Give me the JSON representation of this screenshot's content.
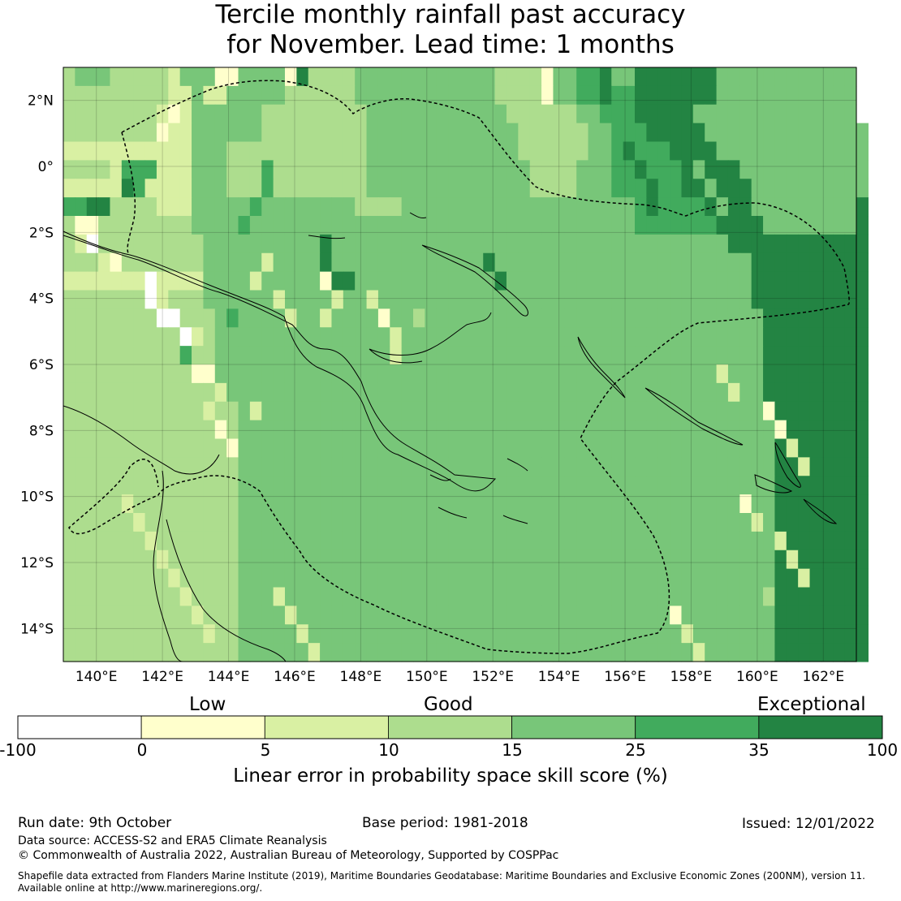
{
  "title": {
    "line1": "Tercile monthly rainfall past accuracy",
    "line2": "for November. Lead time: 1 months"
  },
  "map": {
    "lat_labels": [
      "2°N",
      "0°",
      "2°S",
      "4°S",
      "6°S",
      "8°S",
      "10°S",
      "12°S",
      "14°S"
    ],
    "lon_labels": [
      "140°E",
      "142°E",
      "144°E",
      "146°E",
      "148°E",
      "150°E",
      "152°E",
      "154°E",
      "156°E",
      "158°E",
      "160°E",
      "162°E"
    ],
    "lat_range": [
      3.0,
      -15.0
    ],
    "lon_range": [
      139.0,
      163.0
    ],
    "grid_rows": [
      "DEEEDDDDDCEEEEEEEEEBGDDDDEEEEEEEEEEEEDDDDBEEFFGEEGGGGGGGHHHHHHHHHHHH",
      "DDDDDDDDDCCEEEEEEEEDDDDDDEEEEEEEEEEEEDDDDBEEFFGFFGGGGGGGHHHHHHHHHHHH",
      "DDDDDDDDDCCEEEEEEDDDDDDDDDEEEEEEEEEEEEDDDDDDEEFFFGGGGGHHHHHHHHHHHHHH",
      "DDDDDDDDCCCEEEEEEDDDDDDDDDEEEEEEEEEEEEEDDDDDDEEFFFGGGGGHHHHHHHHHHHHHH",
      "CCCCCCCCCCCEEEDDDDDDDDDDDDEEEEEEEEEEEEEDDDDDDEEFFFFFGGGGHHHHHHHHHHHHH",
      "DDDDCCCCCCCEEEDDDDDDDDDDDDEEEEEEEEEEEEEEDDDDEEEFFFFFFGGGGGHHHHHHHHHHH",
      "CCCCCCCCCCCEEEDDDDDDDDDDDDEEEEEEEEEEEEEEDDDDEEEFFFFFFGGGGGGHHHHHHHHHH",
      "DDDDDDDDCCCEEEEEEEEEEEEEEDDDDEEEEEEEEEEEEEEEEEEEEFFFFFFGGGGHHHHHHHHHG",
      "DDDDDDDDDDDEEEEEEEEEEEEEEEEEEEEEEEEEEEEEEEEEEEEEEFFFFFFFGGGGHHHHHHHHG",
      "DDDDDDDDDDDDEEEEEEEEEEEEEEEEEEEEEEEEEEEEEEEEEEEEEEEEEEEEEGGGGGGGGGGGG",
      "DDDDDDDDDDDDEEEEEEEEEEEEEEEEEEEEEEEEEEEEEEEEEEEEEEEEEEEEEEEGGGGGGGGGG",
      "CCCCCCCCCCCCEEEEEEEEEEEEEEEEEEEEEEEEEEEEEEEEEEEEEEEEEEEEEEEGGGGGGGGGG",
      "DDDDDDDDDDDDEEEEEEEEEEEEEEEEEEEEEEEEEEEEEEEEEEEEEEEEEEEEEEEGGGGGGGGGG",
      "DDDDDDDDDDDDDEEEEEEEEEEEEEEEEEEEEEEEEEEEEEEEEEEEEEEEEEEEEEEEGGGGGGGGG",
      "DDDDDDDDDDDDDEEEEEEEEEEEEEEEEEEEEEEEEEEEEEEEEEEEEEEEEEEEEEEEGGGGGGGGG",
      "DDDDDDDDDDDDDEEEEEEEEEEEEEEEEEEEEEEEEEEEEEEEEEEEEEEEEEEEEEEEGGGGGGGGG",
      "DDDDDDDDDDDDDEEEEEEEEEEEEEEEEEEEEEEEEEEEEEEEEEEEEEEEEEEEEEEEGGGGGGGGG",
      "DDDDDDDDDDDDDEEEEEEEEEEEEEEEEEEEEEEEEEEEEEEEEEEEEEEEEEEEEEEEGGGGGGGGG",
      "DDDDDDDDDDDDDDDEEEEEEEEEEEEEEEEEEEEEEEEEEEEEEEEEEEEEEEEEEEEEEGGGGGGGG",
      "DDDDDDDDDDDDDDDEEEEEEEEEEEEEEEEEEEEEEEEEEEEEEEEEEEEEEEEEEEEEEGGGGGGGG",
      "DDDDDDDDDDDDDDDEEEEEEEEEEEEEEEEEEEEEEEEEEEEEEEEEEEEEEEEEEEEEEGGGGGGGG",
      "DDDDDDDDDDDDDDDEEEEEEEEEEEEEEEEEEEEEEEEEEEEEEEEEEEEEEEEEEEEEEGGGGGGGG",
      "DDDDDDDDDDDDDDDEEEEEEEEEEEEEEEEEEEEEEEEEEEEEEEEEEEEEEEEEEEEEEGGGGGGGG",
      "DDDDDDDDDDDDDDDEEEEEEEEEEEEEEEEEEEEEEEEEEEEEEEEEEEEEEEEEEEEEEGGGGGGGG",
      "DDDDDDDDDDDDDDDEEEEEEEEEEEEEEEEEEEEEEEEEEEEEEEEEEEEEEEEEEEEEEGGGGGGGG",
      "DDDDDDDDDDDDDDDEEEEEEEEEEEEEEEEEEEEEEEEEEEEEEEEEEEEEEEEEEEEEEGGGGGGGG",
      "DDDDDDDDDDDDDDDEEEEEEEEEEEEEEEEEEEEEEEEEEEEEEEEEEEEEEEEEEEEEEGGGGGGGG",
      "DDDDDDDDDDDDDDDEEEEEEEEEEEEEEEEEEEEEEEEEEEEEEEEEEEEEEEEEEEEEEGGGGGGGG",
      "DDDDDDDDDDDDDDDEEEEEEEEEEEEEEEEEEEEEEEEEEEEEEEEEEEEEEEEEEEEEEGGGGGGGG",
      "DDDDDDDDDDDDDDDEEEEEEEEEEEEEEEEEEEEEEEEEEEEEEEEEEEEEEEEEEEEEEGGGGGGGG",
      "DDDDDDDDDDDDDDDEEEEEEEEEEEEEEEEEEEEEEEEEEEEEEEEEEEEEEEEEEEEEEGGGGGGGG",
      "DDDDDDDDDDDDDDDEEEEEEEEEEEEEEEEEEEEEEEEEEEEEEEEEEEEEEEEEEEEEEGGGGGGGG"
    ],
    "overrides": [
      [
        0,
        13,
        "B"
      ],
      [
        0,
        14,
        "B"
      ],
      [
        1,
        12,
        "C"
      ],
      [
        1,
        13,
        "C"
      ],
      [
        2,
        8,
        "C"
      ],
      [
        2,
        9,
        "B"
      ],
      [
        3,
        8,
        "B"
      ],
      [
        5,
        5,
        "F"
      ],
      [
        5,
        6,
        "F"
      ],
      [
        5,
        7,
        "F"
      ],
      [
        6,
        5,
        "G"
      ],
      [
        6,
        6,
        "F"
      ],
      [
        7,
        0,
        "F"
      ],
      [
        7,
        1,
        "F"
      ],
      [
        7,
        2,
        "G"
      ],
      [
        7,
        3,
        "G"
      ],
      [
        8,
        1,
        "B"
      ],
      [
        8,
        2,
        "B"
      ],
      [
        9,
        1,
        "C"
      ],
      [
        9,
        2,
        "A"
      ],
      [
        10,
        3,
        "C"
      ],
      [
        10,
        4,
        "B"
      ],
      [
        11,
        7,
        "A"
      ],
      [
        12,
        7,
        "A"
      ],
      [
        12,
        8,
        "C"
      ],
      [
        13,
        8,
        "A"
      ],
      [
        13,
        9,
        "A"
      ],
      [
        14,
        10,
        "A"
      ],
      [
        14,
        11,
        "C"
      ],
      [
        15,
        10,
        "F"
      ],
      [
        16,
        11,
        "B"
      ],
      [
        16,
        12,
        "B"
      ],
      [
        17,
        13,
        "C"
      ],
      [
        18,
        12,
        "C"
      ],
      [
        18,
        16,
        "C"
      ],
      [
        19,
        13,
        "B"
      ],
      [
        20,
        14,
        "B"
      ],
      [
        5,
        17,
        "F"
      ],
      [
        6,
        17,
        "F"
      ],
      [
        7,
        16,
        "F"
      ],
      [
        8,
        15,
        "F"
      ],
      [
        13,
        14,
        "F"
      ],
      [
        10,
        17,
        "C"
      ],
      [
        11,
        16,
        "C"
      ],
      [
        12,
        18,
        "C"
      ],
      [
        13,
        19,
        "C"
      ],
      [
        11,
        22,
        "B"
      ],
      [
        12,
        23,
        "C"
      ],
      [
        13,
        22,
        "C"
      ],
      [
        12,
        26,
        "C"
      ],
      [
        13,
        27,
        "B"
      ],
      [
        14,
        28,
        "C"
      ],
      [
        15,
        28,
        "C"
      ],
      [
        13,
        30,
        "D"
      ],
      [
        9,
        22,
        "G"
      ],
      [
        10,
        22,
        "G"
      ],
      [
        11,
        23,
        "G"
      ],
      [
        11,
        24,
        "G"
      ],
      [
        10,
        36,
        "G"
      ],
      [
        11,
        37,
        "G"
      ],
      [
        4,
        48,
        "G"
      ],
      [
        5,
        49,
        "G"
      ],
      [
        6,
        50,
        "G"
      ],
      [
        7,
        50,
        "G"
      ],
      [
        3,
        52,
        "G"
      ],
      [
        4,
        53,
        "G"
      ],
      [
        5,
        54,
        "H"
      ],
      [
        6,
        55,
        "H"
      ],
      [
        7,
        56,
        "H"
      ],
      [
        16,
        56,
        "C"
      ],
      [
        17,
        57,
        "C"
      ],
      [
        18,
        60,
        "B"
      ],
      [
        19,
        61,
        "B"
      ],
      [
        20,
        62,
        "C"
      ],
      [
        21,
        63,
        "C"
      ],
      [
        23,
        58,
        "B"
      ],
      [
        24,
        59,
        "C"
      ],
      [
        25,
        61,
        "C"
      ],
      [
        26,
        62,
        "C"
      ],
      [
        27,
        63,
        "C"
      ],
      [
        28,
        60,
        "D"
      ],
      [
        29,
        52,
        "B"
      ],
      [
        30,
        53,
        "C"
      ],
      [
        31,
        54,
        "C"
      ],
      [
        28,
        18,
        "C"
      ],
      [
        29,
        19,
        "C"
      ],
      [
        30,
        20,
        "C"
      ],
      [
        31,
        21,
        "C"
      ],
      [
        26,
        8,
        "C"
      ],
      [
        27,
        9,
        "C"
      ],
      [
        28,
        10,
        "C"
      ],
      [
        29,
        11,
        "C"
      ],
      [
        30,
        12,
        "C"
      ],
      [
        23,
        5,
        "C"
      ],
      [
        24,
        6,
        "C"
      ],
      [
        25,
        7,
        "C"
      ]
    ]
  },
  "colorbar": {
    "categories": {
      "low": "Low",
      "good": "Good",
      "exceptional": "Exceptional"
    },
    "ticks": [
      "-100",
      "0",
      "5",
      "10",
      "15",
      "25",
      "35",
      "100"
    ],
    "colors": [
      "#ffffff",
      "#ffffcc",
      "#d9f0a3",
      "#addd8e",
      "#78c679",
      "#41ab5d",
      "#238443"
    ],
    "label": "Linear error in probability space skill score (%)"
  },
  "footer": {
    "run_date": "Run date: 9th October",
    "base_period": "Base period: 1981-2018",
    "issued": "Issued: 12/01/2022",
    "data_source": "Data source: ACCESS-S2 and ERA5 Climate Reanalysis",
    "copyright": "© Commonwealth of Australia 2022, Australian Bureau of Meteorology, Supported by COSPPac",
    "shapefile_line1": "Shapefile data extracted from Flanders Marine Institute (2019), Maritime Boundaries Geodatabase: Maritime Boundaries and Exclusive Economic Zones (200NM), version 11.",
    "shapefile_line2": "Available online at http://www.marineregions.org/."
  }
}
